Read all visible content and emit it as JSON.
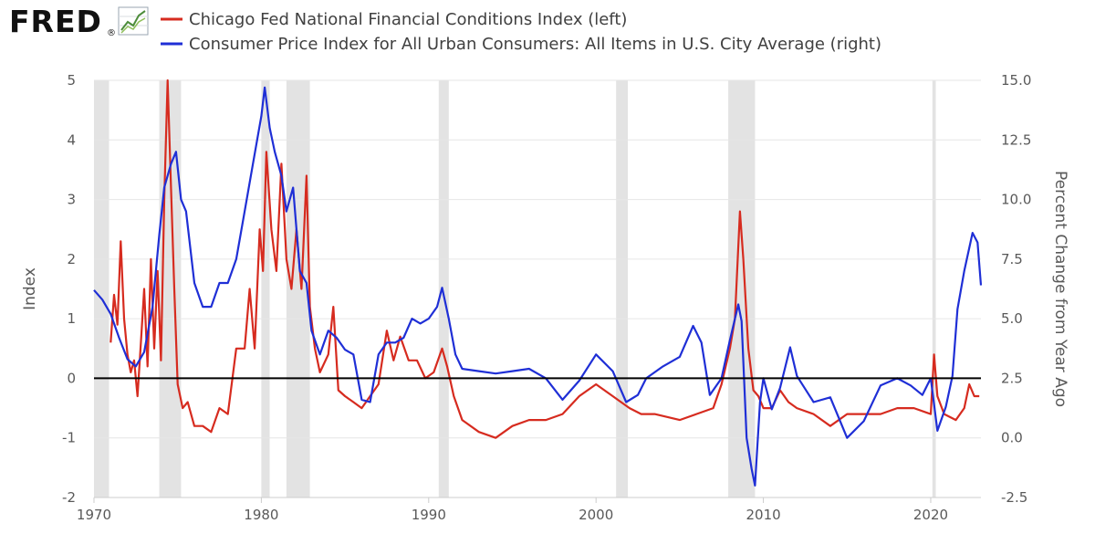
{
  "logo": {
    "text": "FRED",
    "mark": "®"
  },
  "chart_data": {
    "type": "line",
    "title": "",
    "legend_position": "top",
    "grid": true,
    "xlim": [
      1970,
      2023
    ],
    "x_ticks": [
      1970,
      1980,
      1990,
      2000,
      2010,
      2020
    ],
    "x_tick_labels": [
      "1970",
      "1980",
      "1990",
      "2000",
      "2010",
      "2020"
    ],
    "y_left": {
      "label": "Index",
      "lim": [
        -2,
        5
      ],
      "ticks": [
        -2,
        -1,
        0,
        1,
        2,
        3,
        4,
        5
      ],
      "tick_labels": [
        "-2",
        "-1",
        "0",
        "1",
        "2",
        "3",
        "4",
        "5"
      ]
    },
    "y_right": {
      "label": "Percent Change from Year Ago",
      "lim": [
        -2.5,
        15.0
      ],
      "ticks": [
        -2.5,
        0.0,
        2.5,
        5.0,
        7.5,
        10.0,
        12.5,
        15.0
      ],
      "tick_labels": [
        "-2.5",
        "0.0",
        "2.5",
        "5.0",
        "7.5",
        "10.0",
        "12.5",
        "15.0"
      ]
    },
    "zero_line": 0,
    "recessions": [
      [
        1970.0,
        1970.9
      ],
      [
        1973.9,
        1975.2
      ],
      [
        1980.0,
        1980.5
      ],
      [
        1981.5,
        1982.9
      ],
      [
        1990.6,
        1991.2
      ],
      [
        2001.2,
        2001.9
      ],
      [
        2007.9,
        2009.5
      ],
      [
        2020.1,
        2020.3
      ]
    ],
    "series": [
      {
        "name": "Chicago Fed National Financial Conditions Index (left)",
        "axis": "left",
        "color": "#d62b1f",
        "x": [
          1971.0,
          1971.2,
          1971.4,
          1971.6,
          1971.8,
          1972.0,
          1972.2,
          1972.4,
          1972.6,
          1972.8,
          1973.0,
          1973.2,
          1973.4,
          1973.6,
          1973.8,
          1974.0,
          1974.2,
          1974.4,
          1974.6,
          1974.8,
          1975.0,
          1975.3,
          1975.6,
          1976.0,
          1976.5,
          1977.0,
          1977.5,
          1978.0,
          1978.5,
          1979.0,
          1979.3,
          1979.6,
          1979.9,
          1980.1,
          1980.3,
          1980.6,
          1980.9,
          1981.2,
          1981.5,
          1981.8,
          1982.1,
          1982.4,
          1982.7,
          1982.9,
          1983.2,
          1983.5,
          1984.0,
          1984.3,
          1984.6,
          1985.0,
          1985.5,
          1986.0,
          1986.5,
          1987.0,
          1987.5,
          1987.9,
          1988.3,
          1988.8,
          1989.3,
          1989.8,
          1990.3,
          1990.8,
          1991.1,
          1991.5,
          1992.0,
          1993.0,
          1994.0,
          1995.0,
          1996.0,
          1997.0,
          1998.0,
          1999.0,
          2000.0,
          2001.0,
          2002.0,
          2002.7,
          2003.5,
          2005.0,
          2006.0,
          2007.0,
          2007.5,
          2008.0,
          2008.3,
          2008.6,
          2008.8,
          2009.1,
          2009.4,
          2009.7,
          2010.0,
          2010.5,
          2011.0,
          2011.5,
          2012.0,
          2013.0,
          2014.0,
          2015.0,
          2016.0,
          2017.0,
          2018.0,
          2019.0,
          2020.0,
          2020.2,
          2020.4,
          2020.8,
          2021.5,
          2022.0,
          2022.3,
          2022.6,
          2022.9
        ],
        "values": [
          0.6,
          1.4,
          0.9,
          2.3,
          1.0,
          0.4,
          0.1,
          0.3,
          -0.3,
          0.6,
          1.5,
          0.2,
          2.0,
          0.5,
          1.8,
          0.3,
          3.0,
          5.0,
          3.2,
          1.5,
          -0.1,
          -0.5,
          -0.4,
          -0.8,
          -0.8,
          -0.9,
          -0.5,
          -0.6,
          0.5,
          0.5,
          1.5,
          0.5,
          2.5,
          1.8,
          3.8,
          2.5,
          1.8,
          3.6,
          2.0,
          1.5,
          2.5,
          1.5,
          3.4,
          1.2,
          0.5,
          0.1,
          0.4,
          1.2,
          -0.2,
          -0.3,
          -0.4,
          -0.5,
          -0.3,
          -0.1,
          0.8,
          0.3,
          0.7,
          0.3,
          0.3,
          0.0,
          0.1,
          0.5,
          0.2,
          -0.3,
          -0.7,
          -0.9,
          -1.0,
          -0.8,
          -0.7,
          -0.7,
          -0.6,
          -0.3,
          -0.1,
          -0.3,
          -0.5,
          -0.6,
          -0.6,
          -0.7,
          -0.6,
          -0.5,
          -0.1,
          0.5,
          1.0,
          2.8,
          2.0,
          0.5,
          -0.2,
          -0.3,
          -0.5,
          -0.5,
          -0.2,
          -0.4,
          -0.5,
          -0.6,
          -0.8,
          -0.6,
          -0.6,
          -0.6,
          -0.5,
          -0.5,
          -0.6,
          0.4,
          -0.3,
          -0.6,
          -0.7,
          -0.5,
          -0.1,
          -0.3,
          -0.3
        ]
      },
      {
        "name": "Consumer Price Index for All Urban Consumers: All Items in U.S. City Average (right)",
        "axis": "right",
        "color": "#1f2fd6",
        "x": [
          1970.0,
          1970.5,
          1971.0,
          1971.5,
          1972.0,
          1972.5,
          1973.0,
          1973.5,
          1973.9,
          1974.2,
          1974.6,
          1974.9,
          1975.2,
          1975.5,
          1976.0,
          1976.5,
          1977.0,
          1977.5,
          1978.0,
          1978.5,
          1979.0,
          1979.5,
          1980.0,
          1980.2,
          1980.5,
          1980.8,
          1981.2,
          1981.5,
          1981.9,
          1982.3,
          1982.7,
          1983.0,
          1983.5,
          1984.0,
          1984.5,
          1985.0,
          1985.5,
          1986.0,
          1986.5,
          1987.0,
          1987.5,
          1988.0,
          1988.5,
          1989.0,
          1989.5,
          1990.0,
          1990.5,
          1990.8,
          1991.2,
          1991.6,
          1992.0,
          1993.0,
          1994.0,
          1995.0,
          1996.0,
          1997.0,
          1998.0,
          1999.0,
          2000.0,
          2001.0,
          2001.8,
          2002.5,
          2003.0,
          2004.0,
          2005.0,
          2005.8,
          2006.3,
          2006.8,
          2007.5,
          2008.0,
          2008.5,
          2008.7,
          2009.0,
          2009.3,
          2009.5,
          2009.8,
          2010.0,
          2010.5,
          2011.0,
          2011.6,
          2012.0,
          2013.0,
          2014.0,
          2015.0,
          2016.0,
          2017.0,
          2018.0,
          2018.8,
          2019.5,
          2020.0,
          2020.4,
          2020.9,
          2021.3,
          2021.6,
          2022.0,
          2022.5,
          2022.8,
          2023.0
        ],
        "values": [
          6.2,
          5.8,
          5.2,
          4.2,
          3.3,
          3.0,
          3.6,
          5.5,
          8.5,
          10.5,
          11.5,
          12.0,
          10.0,
          9.5,
          6.5,
          5.5,
          5.5,
          6.5,
          6.5,
          7.5,
          9.5,
          11.5,
          13.5,
          14.7,
          13.0,
          12.0,
          11.0,
          9.5,
          10.5,
          7.0,
          6.5,
          4.5,
          3.5,
          4.5,
          4.2,
          3.7,
          3.5,
          1.6,
          1.5,
          3.5,
          4.0,
          4.0,
          4.2,
          5.0,
          4.8,
          5.0,
          5.5,
          6.3,
          5.0,
          3.5,
          2.9,
          2.8,
          2.7,
          2.8,
          2.9,
          2.5,
          1.6,
          2.4,
          3.5,
          2.8,
          1.5,
          1.8,
          2.5,
          3.0,
          3.4,
          4.7,
          4.0,
          1.8,
          2.5,
          4.1,
          5.6,
          4.9,
          0.0,
          -1.3,
          -2.0,
          1.5,
          2.5,
          1.2,
          2.1,
          3.8,
          2.6,
          1.5,
          1.7,
          0.0,
          0.7,
          2.2,
          2.5,
          2.2,
          1.8,
          2.5,
          0.3,
          1.3,
          2.6,
          5.4,
          7.0,
          8.6,
          8.2,
          6.4
        ]
      }
    ]
  }
}
